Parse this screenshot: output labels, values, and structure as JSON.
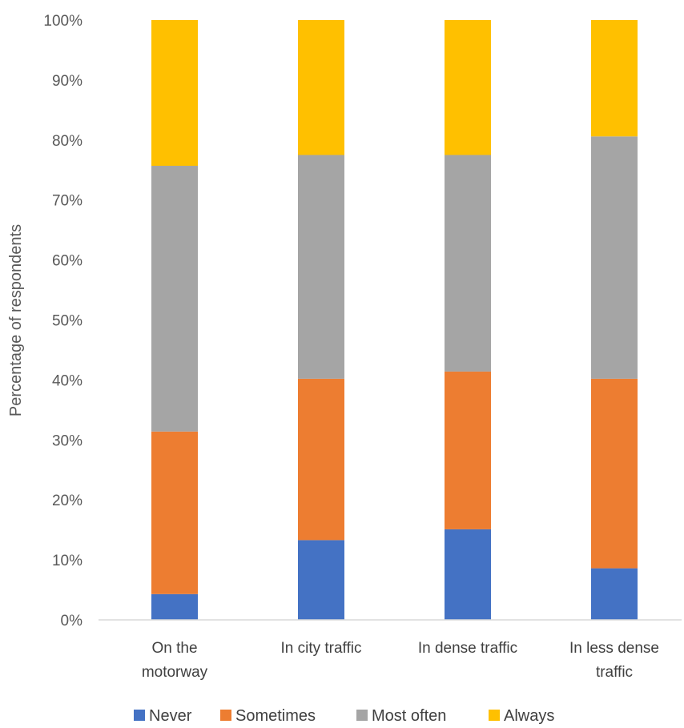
{
  "chart_data": {
    "type": "bar",
    "stacked": true,
    "percent_stacked": true,
    "categories": [
      [
        "On the",
        "motorway"
      ],
      [
        "In city traffic"
      ],
      [
        "In dense traffic"
      ],
      [
        "In less dense",
        "traffic"
      ]
    ],
    "series": [
      {
        "name": "Never",
        "color": "#4472C4",
        "values": [
          4.3,
          13.3,
          15.1,
          8.6
        ]
      },
      {
        "name": "Sometimes",
        "color": "#ED7D31",
        "values": [
          27.1,
          26.9,
          26.3,
          31.6
        ]
      },
      {
        "name": "Most often",
        "color": "#A5A5A5",
        "values": [
          44.3,
          37.3,
          36.1,
          40.4
        ]
      },
      {
        "name": "Always",
        "color": "#FFC000",
        "values": [
          24.3,
          22.5,
          22.5,
          19.4
        ]
      }
    ],
    "yticks": [
      "0%",
      "10%",
      "20%",
      "30%",
      "40%",
      "50%",
      "60%",
      "70%",
      "80%",
      "90%",
      "100%"
    ],
    "ylim": [
      0,
      100
    ],
    "ylabel": "Percentage of respondents",
    "xlabel": "",
    "grid": false,
    "legend_position": "bottom"
  }
}
